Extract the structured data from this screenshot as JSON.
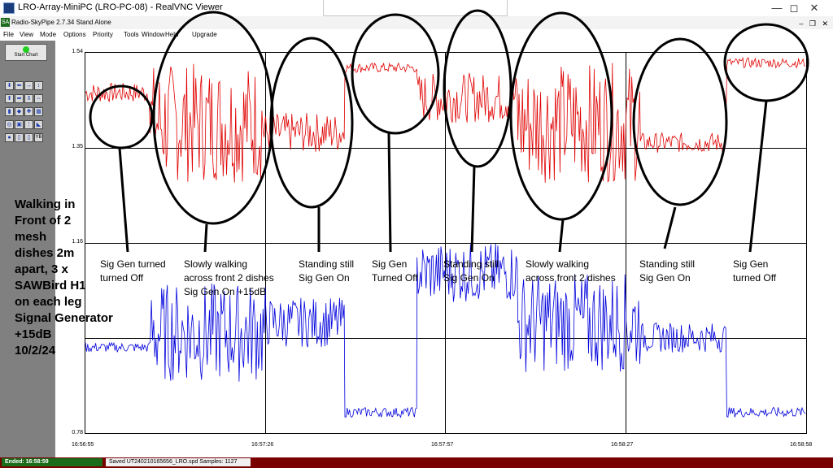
{
  "window": {
    "title": "LRO-Array-MiniPC (LRO-PC-08) - RealVNC Viewer",
    "minimize_icon": "minimize-icon",
    "maximize_icon": "maximize-icon",
    "close_icon": "close-icon"
  },
  "app": {
    "name_version": "Radio-SkyPipe  2.7.34  Stand Alone",
    "icon_label": "SA"
  },
  "menu": {
    "items": [
      "File",
      "View",
      "Mode",
      "Options",
      "Priority",
      "Tools",
      "Window",
      "Help",
      "Upgrade"
    ]
  },
  "toolbar": {
    "start_chart_label": "Start Chart",
    "yb_label": "YB"
  },
  "overlay": {
    "lines": [
      "Walking in",
      "Front of 2",
      "mesh",
      "dishes 2m",
      "apart, 3 x",
      "SAWBird H1",
      "on each leg",
      "Signal Generator",
      "+15dB",
      "10/2/24"
    ]
  },
  "chart_data": {
    "type": "line",
    "y_ticks": [
      "1.54",
      "1.35",
      "1.16",
      "0.78"
    ],
    "x_ticks": [
      "16:56:55",
      "16:57:26",
      "16:57:57",
      "16:58:27",
      "16:58:58"
    ],
    "ylim": [
      0.78,
      1.54
    ],
    "series": [
      {
        "color": "#e00000",
        "segments": [
          {
            "t": [
              0.0,
              0.09
            ],
            "level": 1.46,
            "amp": 0.02
          },
          {
            "t": [
              0.09,
              0.25
            ],
            "level": 1.4,
            "amp": 0.12
          },
          {
            "t": [
              0.25,
              0.36
            ],
            "level": 1.38,
            "amp": 0.04
          },
          {
            "t": [
              0.36,
              0.46
            ],
            "level": 1.51,
            "amp": 0.01
          },
          {
            "t": [
              0.46,
              0.6
            ],
            "level": 1.45,
            "amp": 0.05
          },
          {
            "t": [
              0.6,
              0.77
            ],
            "level": 1.4,
            "amp": 0.12
          },
          {
            "t": [
              0.77,
              0.89
            ],
            "level": 1.36,
            "amp": 0.02
          },
          {
            "t": [
              0.89,
              1.0
            ],
            "level": 1.52,
            "amp": 0.01
          }
        ]
      },
      {
        "color": "#0000dd",
        "segments": [
          {
            "t": [
              0.0,
              0.09
            ],
            "level": 0.95,
            "amp": 0.01
          },
          {
            "t": [
              0.09,
              0.25
            ],
            "level": 0.98,
            "amp": 0.1
          },
          {
            "t": [
              0.25,
              0.36
            ],
            "level": 1.0,
            "amp": 0.05
          },
          {
            "t": [
              0.36,
              0.46
            ],
            "level": 0.82,
            "amp": 0.01
          },
          {
            "t": [
              0.46,
              0.6
            ],
            "level": 1.1,
            "amp": 0.06
          },
          {
            "t": [
              0.6,
              0.77
            ],
            "level": 1.0,
            "amp": 0.1
          },
          {
            "t": [
              0.77,
              0.89
            ],
            "level": 0.97,
            "amp": 0.03
          },
          {
            "t": [
              0.89,
              1.0
            ],
            "level": 0.82,
            "amp": 0.01
          }
        ]
      }
    ]
  },
  "annotations": [
    {
      "lines": [
        "Sig Gen turned",
        "turned Off"
      ]
    },
    {
      "lines": [
        "Slowly walking",
        "across front 2 dishes",
        "Sig Gen On +15dB"
      ]
    },
    {
      "lines": [
        "Standing still",
        "Sig Gen On"
      ]
    },
    {
      "lines": [
        "Sig Gen",
        "Turned Off"
      ]
    },
    {
      "lines": [
        "Standing still",
        "Sig Gen On"
      ]
    },
    {
      "lines": [
        "Slowly walking",
        "across front 2 dishes"
      ]
    },
    {
      "lines": [
        "Standing still",
        "Sig Gen On"
      ]
    },
    {
      "lines": [
        "Sig Gen",
        "turned Off"
      ]
    }
  ],
  "status": {
    "ended": "Ended:  16:58:59",
    "saved": "Saved UT240210165656_LRO.spd  Samples: 1127"
  }
}
